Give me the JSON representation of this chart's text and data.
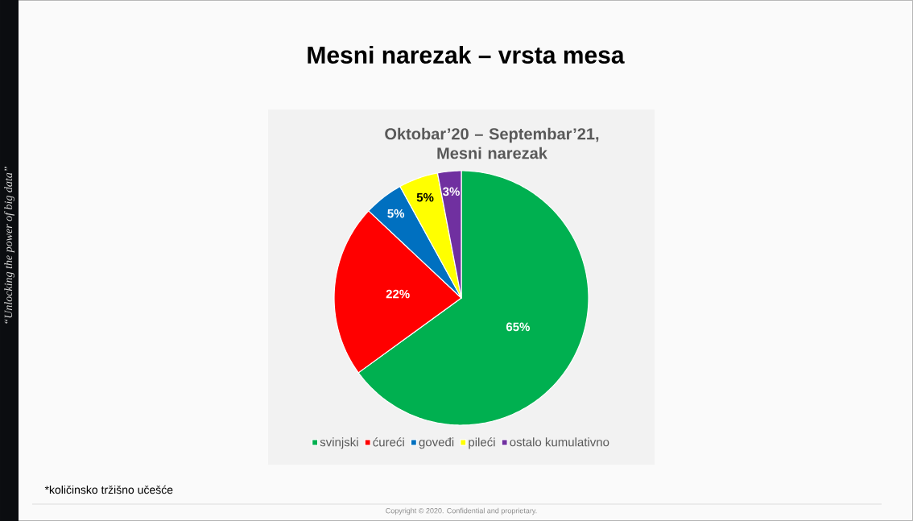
{
  "chart_data": {
    "type": "pie",
    "title": "Mesni narezak – vrsta mesa",
    "subtitle": "Oktobar’20 – Septembar’21, Mesni narezak",
    "categories": [
      "svinjski",
      "ćureći",
      "goveđi",
      "pileći",
      "ostalo kumulativno"
    ],
    "values": [
      65,
      22,
      5,
      5,
      3
    ],
    "colors": [
      "#00b050",
      "#ff0000",
      "#0070c0",
      "#ffff00",
      "#7030a0"
    ],
    "value_labels": [
      "65%",
      "22%",
      "5%",
      "5%",
      "3%"
    ],
    "legend": "bottom",
    "annotations": [
      "*količinsko tržišno učešće",
      "Copyright © 2020. Confidential and proprietary.",
      "“Unlocking the power of big data”"
    ]
  }
}
